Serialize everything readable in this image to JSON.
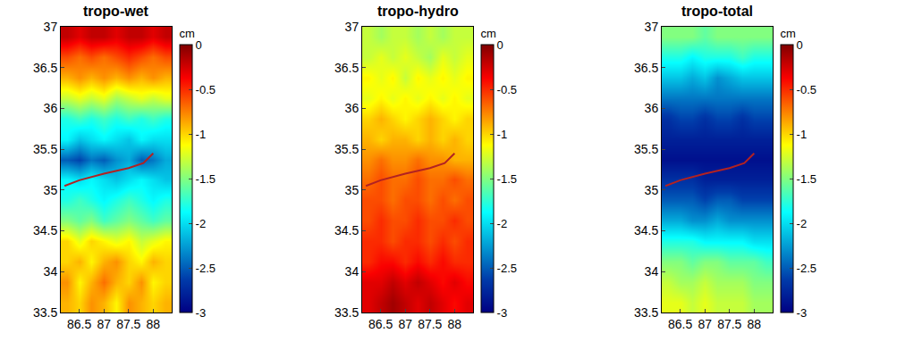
{
  "chart_data": [
    {
      "type": "heatmap",
      "title": "tropo-wet",
      "x": [
        86.25,
        86.5,
        86.75,
        87,
        87.25,
        87.5,
        87.75,
        88,
        88.25
      ],
      "y": [
        33.625,
        33.875,
        34.125,
        34.375,
        34.625,
        34.875,
        35.125,
        35.375,
        35.625,
        35.875,
        36.125,
        36.375,
        36.625,
        36.875
      ],
      "z": [
        [
          -0.9,
          -1.0,
          -0.8,
          -0.9,
          -1.1,
          -0.8,
          -0.9,
          -1.0,
          -0.9
        ],
        [
          -0.8,
          -1.1,
          -0.9,
          -0.7,
          -0.9,
          -1.0,
          -0.8,
          -1.1,
          -1.0
        ],
        [
          -1.0,
          -0.9,
          -1.1,
          -0.9,
          -0.8,
          -1.0,
          -1.1,
          -0.9,
          -1.0
        ],
        [
          -1.0,
          -1.2,
          -1.0,
          -1.1,
          -1.2,
          -1.1,
          -1.3,
          -1.2,
          -1.1
        ],
        [
          -1.5,
          -1.6,
          -1.5,
          -1.7,
          -1.6,
          -1.5,
          -1.6,
          -1.7,
          -1.6
        ],
        [
          -1.8,
          -1.7,
          -1.8,
          -1.9,
          -1.8,
          -1.7,
          -1.8,
          -1.9,
          -1.8
        ],
        [
          -1.9,
          -2.0,
          -1.9,
          -2.0,
          -2.1,
          -2.0,
          -1.9,
          -2.0,
          -2.1
        ],
        [
          -2.5,
          -2.6,
          -2.4,
          -2.5,
          -2.3,
          -2.2,
          -2.5,
          -2.4,
          -2.2
        ],
        [
          -1.9,
          -2.1,
          -2.0,
          -1.9,
          -2.0,
          -2.1,
          -1.9,
          -2.0,
          -2.0
        ],
        [
          -1.8,
          -1.7,
          -1.8,
          -1.7,
          -1.8,
          -1.7,
          -1.8,
          -1.7,
          -1.8
        ],
        [
          -1.3,
          -1.2,
          -1.3,
          -1.2,
          -1.4,
          -1.3,
          -1.2,
          -1.3,
          -1.2
        ],
        [
          -0.9,
          -0.8,
          -0.9,
          -0.8,
          -0.9,
          -0.8,
          -0.9,
          -0.8,
          -0.9
        ],
        [
          -0.6,
          -0.7,
          -0.6,
          -0.7,
          -0.6,
          -0.5,
          -0.6,
          -0.7,
          -0.6
        ],
        [
          -0.2,
          -0.3,
          -0.2,
          -0.2,
          -0.3,
          -0.2,
          -0.2,
          -0.3,
          -0.2
        ]
      ],
      "xlim": [
        86.125,
        88.375
      ],
      "xticks": [
        86.5,
        87,
        87.5,
        88
      ],
      "ylim": [
        33.5,
        37
      ],
      "yticks": [
        33.5,
        34,
        34.5,
        35,
        35.5,
        36,
        36.5,
        37
      ],
      "color": "jet",
      "colorbar": {
        "title": "cm",
        "range": [
          -3,
          0
        ],
        "ticks": [
          -3,
          -2.5,
          -2,
          -1.5,
          -1,
          -0.5,
          0
        ]
      },
      "line": {
        "x": [
          86.2,
          86.5,
          87,
          87.5,
          87.8,
          88
        ],
        "y": [
          35.05,
          35.12,
          35.2,
          35.27,
          35.33,
          35.45
        ],
        "color": "#b22222",
        "line_style": "solid"
      }
    },
    {
      "type": "heatmap",
      "title": "tropo-hydro",
      "x": [
        86.25,
        86.5,
        86.75,
        87,
        87.25,
        87.5,
        87.75,
        88,
        88.25
      ],
      "y": [
        33.625,
        33.875,
        34.125,
        34.375,
        34.625,
        34.875,
        35.125,
        35.375,
        35.625,
        35.875,
        36.125,
        36.375,
        36.625,
        36.875
      ],
      "z": [
        [
          -0.3,
          -0.2,
          -0.1,
          -0.2,
          -0.3,
          -0.2,
          -0.3,
          -0.4,
          -0.3
        ],
        [
          -0.3,
          -0.3,
          -0.2,
          -0.3,
          -0.2,
          -0.3,
          -0.4,
          -0.3,
          -0.4
        ],
        [
          -0.5,
          -0.4,
          -0.4,
          -0.5,
          -0.4,
          -0.5,
          -0.4,
          -0.5,
          -0.5
        ],
        [
          -0.5,
          -0.5,
          -0.6,
          -0.5,
          -0.5,
          -0.6,
          -0.5,
          -0.6,
          -0.5
        ],
        [
          -0.6,
          -0.5,
          -0.6,
          -0.6,
          -0.5,
          -0.6,
          -0.6,
          -0.5,
          -0.6
        ],
        [
          -0.6,
          -0.6,
          -0.7,
          -0.6,
          -0.6,
          -0.7,
          -0.6,
          -0.7,
          -0.6
        ],
        [
          -0.7,
          -0.6,
          -0.7,
          -0.7,
          -0.6,
          -0.7,
          -0.7,
          -0.6,
          -0.7
        ],
        [
          -0.8,
          -0.7,
          -0.8,
          -0.8,
          -0.7,
          -0.8,
          -0.8,
          -0.9,
          -0.9
        ],
        [
          -0.9,
          -1.0,
          -0.9,
          -0.9,
          -1.0,
          -0.9,
          -1.0,
          -0.9,
          -1.0
        ],
        [
          -1.0,
          -0.9,
          -1.0,
          -1.1,
          -1.0,
          -0.9,
          -1.0,
          -1.1,
          -1.0
        ],
        [
          -1.2,
          -1.1,
          -1.2,
          -1.1,
          -1.2,
          -1.1,
          -1.2,
          -1.1,
          -1.2
        ],
        [
          -1.1,
          -1.2,
          -1.1,
          -1.3,
          -1.1,
          -1.2,
          -1.1,
          -1.2,
          -1.1
        ],
        [
          -1.3,
          -1.2,
          -1.3,
          -1.2,
          -1.3,
          -1.4,
          -1.2,
          -1.3,
          -1.2
        ],
        [
          -1.3,
          -1.4,
          -1.3,
          -1.3,
          -1.4,
          -1.3,
          -1.4,
          -1.3,
          -1.3
        ]
      ],
      "xlim": [
        86.125,
        88.375
      ],
      "xticks": [
        86.5,
        87,
        87.5,
        88
      ],
      "ylim": [
        33.5,
        37
      ],
      "yticks": [
        33.5,
        34,
        34.5,
        35,
        35.5,
        36,
        36.5,
        37
      ],
      "color": "jet",
      "colorbar": {
        "title": "cm",
        "range": [
          -3,
          0
        ],
        "ticks": [
          -3,
          -2.5,
          -2,
          -1.5,
          -1,
          -0.5,
          0
        ]
      },
      "line": {
        "x": [
          86.2,
          86.5,
          87,
          87.5,
          87.8,
          88
        ],
        "y": [
          35.05,
          35.12,
          35.2,
          35.27,
          35.33,
          35.45
        ],
        "color": "#b22222",
        "line_style": "solid"
      }
    },
    {
      "type": "heatmap",
      "title": "tropo-total",
      "x": [
        86.25,
        86.5,
        86.75,
        87,
        87.25,
        87.5,
        87.75,
        88,
        88.25
      ],
      "y": [
        33.625,
        33.875,
        34.125,
        34.375,
        34.625,
        34.875,
        35.125,
        35.375,
        35.625,
        35.875,
        36.125,
        36.375,
        36.625,
        36.875
      ],
      "z": [
        [
          -1.2,
          -1.2,
          -1.3,
          -1.2,
          -1.3,
          -1.3,
          -1.3,
          -1.4,
          -1.4
        ],
        [
          -1.3,
          -1.4,
          -1.4,
          -1.3,
          -1.4,
          -1.4,
          -1.4,
          -1.5,
          -1.5
        ],
        [
          -1.5,
          -1.5,
          -1.6,
          -1.5,
          -1.5,
          -1.6,
          -1.6,
          -1.6,
          -1.7
        ],
        [
          -1.8,
          -1.8,
          -1.8,
          -1.9,
          -1.9,
          -1.9,
          -1.9,
          -2.0,
          -2.0
        ],
        [
          -2.2,
          -2.2,
          -2.3,
          -2.3,
          -2.2,
          -2.3,
          -2.3,
          -2.3,
          -2.3
        ],
        [
          -2.5,
          -2.5,
          -2.5,
          -2.6,
          -2.5,
          -2.5,
          -2.6,
          -2.6,
          -2.6
        ],
        [
          -2.7,
          -2.7,
          -2.7,
          -2.8,
          -2.8,
          -2.8,
          -2.8,
          -2.8,
          -2.8
        ],
        [
          -2.9,
          -2.9,
          -2.9,
          -2.9,
          -2.9,
          -2.9,
          -2.9,
          -2.9,
          -2.9
        ],
        [
          -2.8,
          -2.8,
          -2.8,
          -2.8,
          -2.8,
          -2.8,
          -2.8,
          -2.8,
          -2.8
        ],
        [
          -2.7,
          -2.6,
          -2.6,
          -2.7,
          -2.6,
          -2.6,
          -2.7,
          -2.6,
          -2.6
        ],
        [
          -2.4,
          -2.4,
          -2.4,
          -2.4,
          -2.4,
          -2.4,
          -2.4,
          -2.4,
          -2.4
        ],
        [
          -2.1,
          -2.1,
          -2.2,
          -2.1,
          -2.3,
          -2.2,
          -2.1,
          -2.1,
          -2.1
        ],
        [
          -1.8,
          -1.8,
          -1.9,
          -1.8,
          -1.8,
          -1.8,
          -1.7,
          -1.8,
          -1.8
        ],
        [
          -1.5,
          -1.5,
          -1.5,
          -1.6,
          -1.5,
          -1.5,
          -1.5,
          -1.5,
          -1.5
        ]
      ],
      "xlim": [
        86.125,
        88.375
      ],
      "xticks": [
        86.5,
        87,
        87.5,
        88
      ],
      "ylim": [
        33.5,
        37
      ],
      "yticks": [
        33.5,
        34,
        34.5,
        35,
        35.5,
        36,
        36.5,
        37
      ],
      "color": "jet",
      "colorbar": {
        "title": "cm",
        "range": [
          -3,
          0
        ],
        "ticks": [
          -3,
          -2.5,
          -2,
          -1.5,
          -1,
          -0.5,
          0
        ]
      },
      "line": {
        "x": [
          86.2,
          86.5,
          87,
          87.5,
          87.8,
          88
        ],
        "y": [
          35.05,
          35.12,
          35.2,
          35.27,
          35.33,
          35.45
        ],
        "color": "#b22222",
        "line_style": "solid"
      }
    }
  ]
}
